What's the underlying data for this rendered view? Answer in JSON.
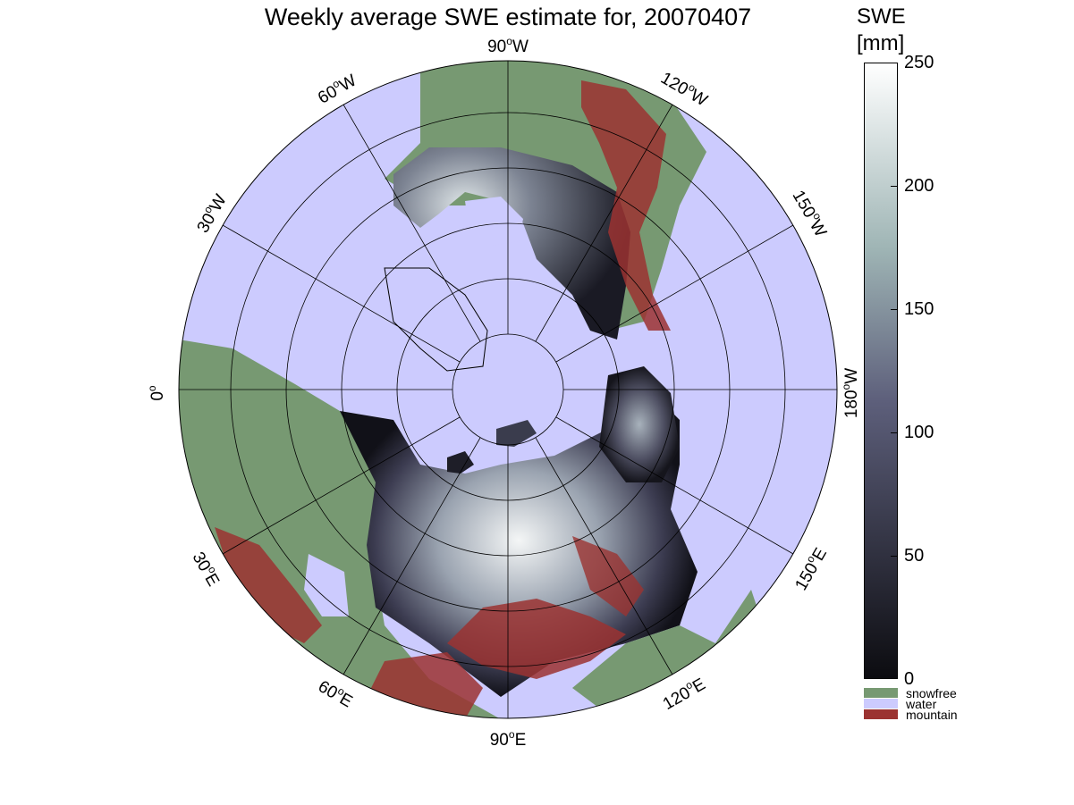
{
  "title": "Weekly average SWE estimate for, 20070407",
  "colorbar": {
    "unit_line1": "SWE",
    "unit_line2": "[mm]",
    "ticks": [
      "250",
      "200",
      "150",
      "100",
      "50",
      "0"
    ],
    "categories": [
      {
        "label": "snowfree",
        "color": "#779972"
      },
      {
        "label": "water",
        "color": "#cccbfe"
      },
      {
        "label": "mountain",
        "color": "#9b3331"
      }
    ]
  },
  "longitude_labels": [
    "90",
    "60",
    "120",
    "30",
    "150",
    "0",
    "180",
    "30",
    "150",
    "60",
    "120",
    "90"
  ],
  "longitude_suffix": [
    "W",
    "W",
    "W",
    "W",
    "W",
    "",
    "W",
    "E",
    "E",
    "E",
    "E",
    "E"
  ],
  "colors": {
    "water": "#cccbfe",
    "snowfree": "#779972",
    "mountain": "#9b3331",
    "swe_low": "#0c0c10",
    "swe_mid": "#5d5f7b",
    "swe_high": "#ffffff"
  }
}
